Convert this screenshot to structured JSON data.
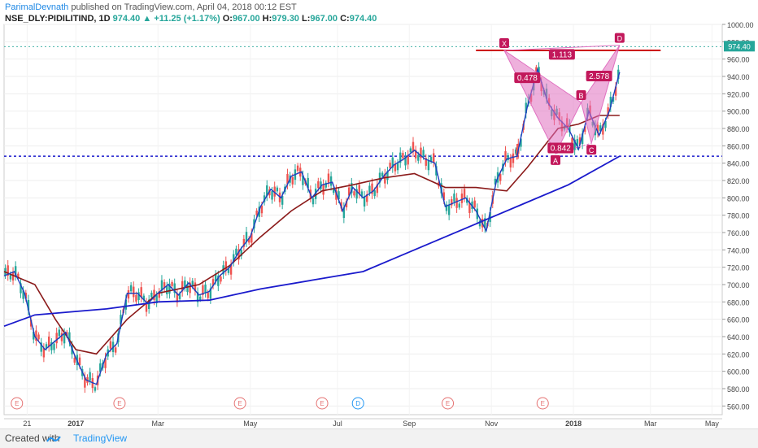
{
  "header": {
    "author": "ParimalDevnath",
    "published": "published on TradingView.com, April 04, 2018 00:12 EST",
    "symbol": "NSE_DLY:PIDILITIND, 1D",
    "last": "974.40",
    "change": "+11.25 (+1.17%)",
    "o_label": "O:",
    "o": "967.00",
    "h_label": "H:",
    "h": "979.30",
    "l_label": "L:",
    "l": "967.00",
    "c_label": "C:",
    "c": "974.40"
  },
  "footer": {
    "created": "Created with",
    "brand": "TradingView"
  },
  "colors": {
    "up": "#26a69a",
    "down": "#ef5350",
    "ma_short": "#1e3fbf",
    "ma_mid": "#8b1a1a",
    "ma_long": "#1a1acc",
    "harmonic": "#e070c0",
    "resistance": "#cc0000",
    "support": "#1a1acc"
  },
  "chart_data": {
    "type": "line",
    "title": "",
    "ylim": [
      550,
      1000
    ],
    "y_ticks": [
      "560.00",
      "580.00",
      "600.00",
      "620.00",
      "640.00",
      "660.00",
      "680.00",
      "700.00",
      "720.00",
      "740.00",
      "760.00",
      "780.00",
      "800.00",
      "820.00",
      "840.00",
      "860.00",
      "880.00",
      "900.00",
      "920.00",
      "940.00",
      "960.00",
      "980.00",
      "1000.00"
    ],
    "x_ticks": [
      "21",
      "2017",
      "Mar",
      "May",
      "Jul",
      "Sep",
      "Nov",
      "2018",
      "Mar",
      "May"
    ],
    "last_price_label": "974.40",
    "series": [
      {
        "name": "",
        "role": "price",
        "x": [
          0,
          2,
          4,
          6,
          8,
          10,
          12,
          14,
          16,
          18,
          20,
          22,
          24,
          26,
          28,
          30,
          32,
          34,
          36,
          38,
          40,
          42,
          44,
          46,
          48,
          50,
          52,
          54,
          56,
          58,
          60,
          62,
          64,
          66,
          68,
          70,
          72,
          74,
          76,
          78,
          80,
          82,
          84,
          86,
          88,
          90,
          92,
          94,
          96,
          98,
          100
        ],
        "values": [
          710,
          715,
          690,
          640,
          625,
          635,
          645,
          615,
          590,
          585,
          620,
          632,
          690,
          690,
          678,
          690,
          700,
          688,
          702,
          688,
          692,
          710,
          720,
          740,
          755,
          790,
          810,
          800,
          825,
          830,
          800,
          815,
          818,
          785,
          812,
          800,
          808,
          825,
          838,
          845,
          855,
          845,
          840,
          790,
          795,
          800,
          785,
          762,
          820,
          845,
          848
        ]
      },
      {
        "name": "",
        "role": "price-2018",
        "x": [
          100,
          102,
          104,
          106,
          108,
          110,
          112,
          114,
          116,
          118,
          120
        ],
        "values": [
          848,
          905,
          948,
          910,
          892,
          880,
          856,
          900,
          872,
          900,
          945
        ]
      },
      {
        "name": "",
        "role": "ma-mid",
        "x": [
          0,
          6,
          10,
          14,
          18,
          24,
          30,
          38,
          44,
          50,
          56,
          62,
          68,
          74,
          80,
          86,
          92,
          98,
          102,
          108,
          112,
          116,
          120
        ],
        "values": [
          715,
          700,
          660,
          625,
          620,
          660,
          690,
          700,
          722,
          755,
          785,
          808,
          815,
          823,
          828,
          812,
          812,
          808,
          835,
          880,
          885,
          895,
          895
        ]
      },
      {
        "name": "",
        "role": "ma-long",
        "x": [
          0,
          6,
          12,
          20,
          30,
          40,
          50,
          60,
          70,
          80,
          90,
          100,
          110,
          120
        ],
        "values": [
          652,
          665,
          668,
          672,
          680,
          682,
          695,
          705,
          715,
          740,
          765,
          790,
          815,
          848
        ]
      }
    ],
    "harmonic_pattern": {
      "points": [
        {
          "label": "X",
          "x": 97.5,
          "y": 970
        },
        {
          "label": "A",
          "x": 107.5,
          "y": 851
        },
        {
          "label": "B",
          "x": 112.5,
          "y": 910
        },
        {
          "label": "C",
          "x": 114.5,
          "y": 863
        },
        {
          "label": "D",
          "x": 120,
          "y": 976
        }
      ],
      "ratios": [
        "1.113",
        "0.478",
        "0.842",
        "2.578"
      ]
    },
    "resistance_level": 970,
    "support_level": 848,
    "event_markers": [
      {
        "x": 2.5,
        "label": "E"
      },
      {
        "x": 22.5,
        "label": "E"
      },
      {
        "x": 46,
        "label": "E"
      },
      {
        "x": 62,
        "label": "E"
      },
      {
        "x": 69,
        "label": "D"
      },
      {
        "x": 86.5,
        "label": "E"
      },
      {
        "x": 105,
        "label": "E"
      }
    ]
  }
}
